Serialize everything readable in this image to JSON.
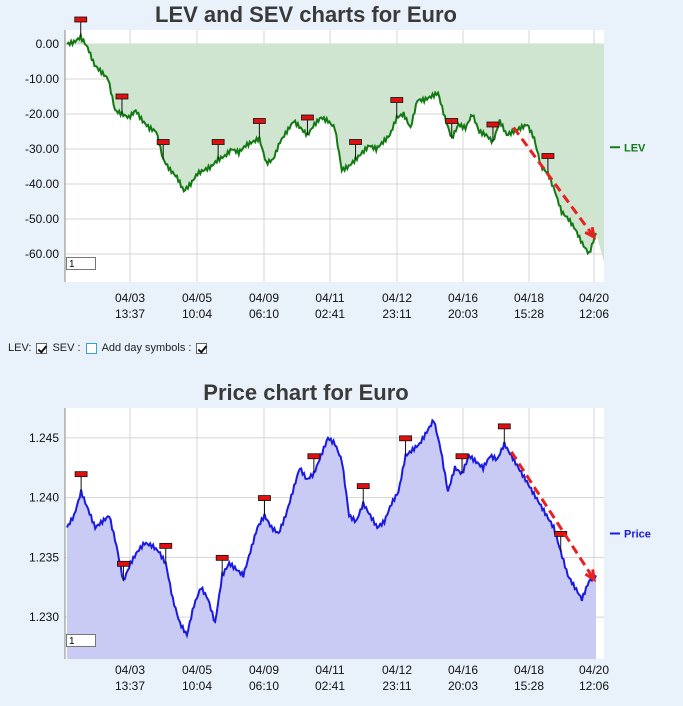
{
  "chart_data": [
    {
      "type": "area",
      "title": "LEV and SEV charts for Euro",
      "ylim": [
        -68,
        4
      ],
      "yticks": [
        "0.00",
        "-10.00",
        "-20.00",
        "-30.00",
        "-40.00",
        "-50.00",
        "-60.00"
      ],
      "ytick_values": [
        0,
        -10,
        -20,
        -30,
        -40,
        -50,
        -60
      ],
      "xticks": [
        {
          "date": "04/03",
          "time": "13:37"
        },
        {
          "date": "04/05",
          "time": "10:04"
        },
        {
          "date": "04/09",
          "time": "06:10"
        },
        {
          "date": "04/11",
          "time": "02:41"
        },
        {
          "date": "04/12",
          "time": "23:11"
        },
        {
          "date": "04/16",
          "time": "20:03"
        },
        {
          "date": "04/18",
          "time": "15:28"
        },
        {
          "date": "04/20",
          "time": "12:06"
        }
      ],
      "series": [
        {
          "name": "LEV",
          "color": "#137a13",
          "values": [
            0,
            0.5,
            2,
            -1,
            -6,
            -8,
            -10,
            -19,
            -20,
            -21,
            -19,
            -22,
            -24,
            -25,
            -33,
            -36,
            -38,
            -42,
            -40,
            -37,
            -36,
            -35,
            -33,
            -32,
            -30,
            -31,
            -29,
            -28,
            -27,
            -34,
            -33,
            -28,
            -25,
            -22,
            -24,
            -26,
            -23,
            -21,
            -22,
            -24,
            -36,
            -35,
            -33,
            -31,
            -29,
            -30,
            -28,
            -26,
            -21,
            -20,
            -24,
            -16,
            -16,
            -15,
            -14,
            -21,
            -27,
            -23,
            -24,
            -20,
            -25,
            -26,
            -28,
            -22,
            -26,
            -25,
            -24,
            -23,
            -27,
            -35,
            -37,
            -42,
            -48,
            -50,
            -53,
            -57,
            -60,
            -54
          ]
        },
        {
          "name": "SEV",
          "color": "#1f4fc2",
          "values": []
        }
      ],
      "markers": [
        "flag-marker"
      ],
      "annotation": "red dashed arrow from 04/18 toward 04/20",
      "fill_color": "#cfe5d0",
      "legend": "right",
      "grid": true,
      "page_input": "1"
    },
    {
      "type": "area",
      "title": "Price chart for Euro",
      "ylim": [
        1.2265,
        1.2475
      ],
      "yticks": [
        "1.245",
        "1.240",
        "1.235",
        "1.230"
      ],
      "ytick_values": [
        1.245,
        1.24,
        1.235,
        1.23
      ],
      "xticks": [
        {
          "date": "04/03",
          "time": "13:37"
        },
        {
          "date": "04/05",
          "time": "10:04"
        },
        {
          "date": "04/09",
          "time": "06:10"
        },
        {
          "date": "04/11",
          "time": "02:41"
        },
        {
          "date": "04/12",
          "time": "23:11"
        },
        {
          "date": "04/16",
          "time": "20:03"
        },
        {
          "date": "04/18",
          "time": "15:28"
        },
        {
          "date": "04/20",
          "time": "12:06"
        }
      ],
      "series": [
        {
          "name": "Price",
          "color": "#1a1ae0",
          "values": [
            1.2375,
            1.2385,
            1.2405,
            1.239,
            1.2375,
            1.238,
            1.2385,
            1.236,
            1.233,
            1.2345,
            1.2355,
            1.2362,
            1.236,
            1.2355,
            1.2345,
            1.2315,
            1.2295,
            1.2285,
            1.231,
            1.2325,
            1.2315,
            1.2295,
            1.2335,
            1.2345,
            1.234,
            1.2335,
            1.2355,
            1.2375,
            1.2385,
            1.2375,
            1.237,
            1.2385,
            1.2405,
            1.2425,
            1.2415,
            1.242,
            1.2435,
            1.245,
            1.2445,
            1.243,
            1.2385,
            1.238,
            1.2395,
            1.2385,
            1.2375,
            1.238,
            1.2395,
            1.2405,
            1.2435,
            1.244,
            1.2445,
            1.2455,
            1.2465,
            1.244,
            1.2405,
            1.2425,
            1.242,
            1.2435,
            1.243,
            1.2425,
            1.2435,
            1.2432,
            1.2445,
            1.2435,
            1.2425,
            1.2415,
            1.2405,
            1.2395,
            1.2385,
            1.2375,
            1.2355,
            1.2335,
            1.2325,
            1.2315,
            1.233,
            1.2335
          ]
        }
      ],
      "markers": [
        "flag-marker"
      ],
      "annotation": "red dashed arrow from 04/18 toward 04/20",
      "fill_color": "#c9cbf5",
      "legend": "right",
      "grid": true,
      "page_input": "1"
    }
  ],
  "controls": {
    "lev_label": "LEV:",
    "sev_label": "SEV :",
    "day_symbols_label": "Add day symbols :",
    "lev_checked": true,
    "sev_checked": false,
    "day_symbols_checked": true
  }
}
